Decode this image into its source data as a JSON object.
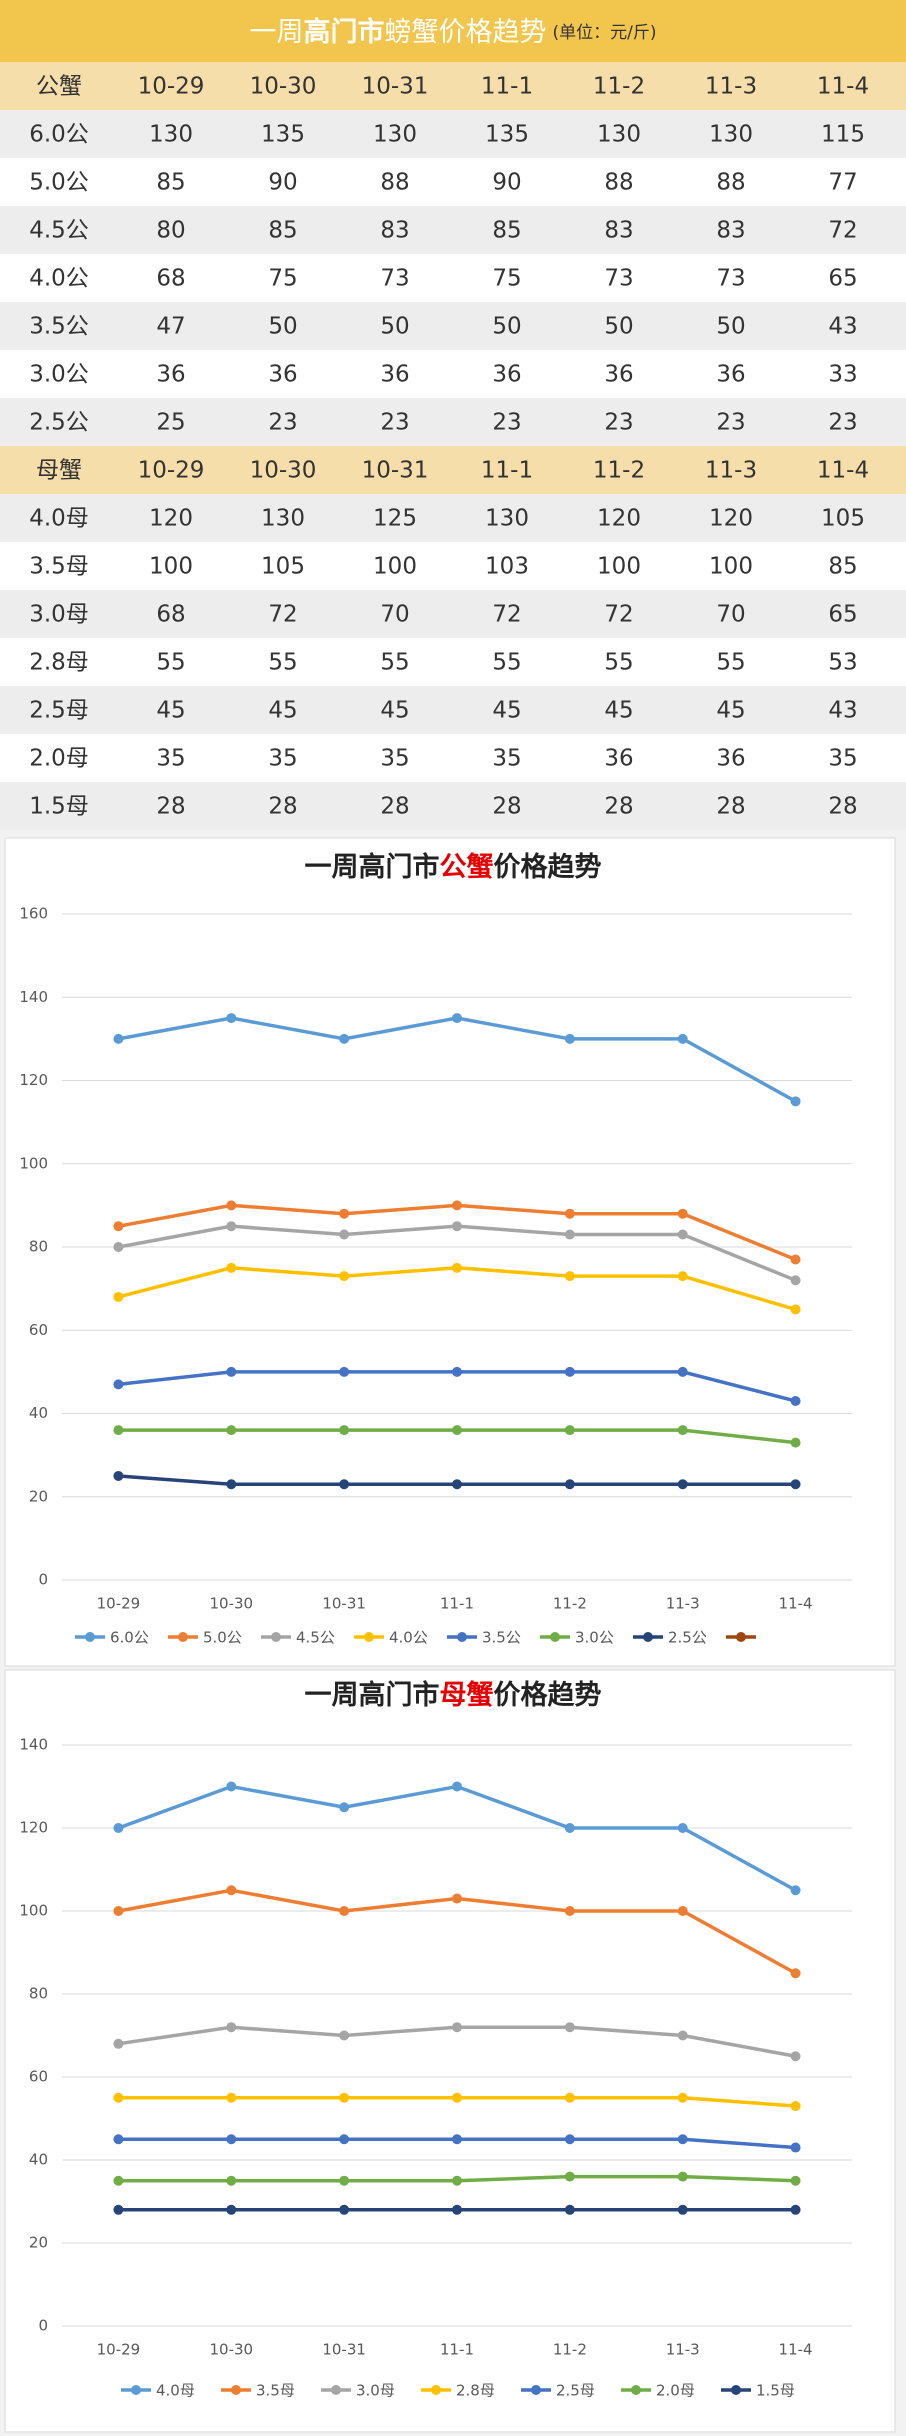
{
  "table": {
    "title": [
      "一周",
      "高门市",
      "螃蟹价格趋势"
    ],
    "unit": "(单位：元/斤)",
    "sections": [
      {
        "header": [
          "公蟹",
          "10-29",
          "10-30",
          "10-31",
          "11-1",
          "11-2",
          "11-3",
          "11-4"
        ],
        "rows": [
          [
            "6.0公",
            130,
            135,
            130,
            135,
            130,
            130,
            115
          ],
          [
            "5.0公",
            85,
            90,
            88,
            90,
            88,
            88,
            77
          ],
          [
            "4.5公",
            80,
            85,
            83,
            85,
            83,
            83,
            72
          ],
          [
            "4.0公",
            68,
            75,
            73,
            75,
            73,
            73,
            65
          ],
          [
            "3.5公",
            47,
            50,
            50,
            50,
            50,
            50,
            43
          ],
          [
            "3.0公",
            36,
            36,
            36,
            36,
            36,
            36,
            33
          ],
          [
            "2.5公",
            25,
            23,
            23,
            23,
            23,
            23,
            23
          ]
        ]
      },
      {
        "header": [
          "母蟹",
          "10-29",
          "10-30",
          "10-31",
          "11-1",
          "11-2",
          "11-3",
          "11-4"
        ],
        "rows": [
          [
            "4.0母",
            120,
            130,
            125,
            130,
            120,
            120,
            105
          ],
          [
            "3.5母",
            100,
            105,
            100,
            103,
            100,
            100,
            85
          ],
          [
            "3.0母",
            68,
            72,
            70,
            72,
            72,
            70,
            65
          ],
          [
            "2.8母",
            55,
            55,
            55,
            55,
            55,
            55,
            53
          ],
          [
            "2.5母",
            45,
            45,
            45,
            45,
            45,
            45,
            43
          ],
          [
            "2.0母",
            35,
            35,
            35,
            35,
            36,
            36,
            35
          ],
          [
            "1.5母",
            28,
            28,
            28,
            28,
            28,
            28,
            28
          ]
        ]
      }
    ]
  },
  "chart_data": [
    {
      "type": "line",
      "title": [
        "一周高门市",
        "公蟹",
        "价格趋势"
      ],
      "categories": [
        "10-29",
        "10-30",
        "10-31",
        "11-1",
        "11-2",
        "11-3",
        "11-4"
      ],
      "series": [
        {
          "name": "6.0公",
          "color": "#5b9bd5",
          "values": [
            130,
            135,
            130,
            135,
            130,
            130,
            115
          ]
        },
        {
          "name": "5.0公",
          "color": "#ed7d31",
          "values": [
            85,
            90,
            88,
            90,
            88,
            88,
            77
          ]
        },
        {
          "name": "4.5公",
          "color": "#a5a5a5",
          "values": [
            80,
            85,
            83,
            85,
            83,
            83,
            72
          ]
        },
        {
          "name": "4.0公",
          "color": "#ffc000",
          "values": [
            68,
            75,
            73,
            75,
            73,
            73,
            65
          ]
        },
        {
          "name": "3.5公",
          "color": "#4472c4",
          "values": [
            47,
            50,
            50,
            50,
            50,
            50,
            43
          ]
        },
        {
          "name": "3.0公",
          "color": "#70ad47",
          "values": [
            36,
            36,
            36,
            36,
            36,
            36,
            33
          ]
        },
        {
          "name": "2.5公",
          "color": "#264478",
          "values": [
            25,
            23,
            23,
            23,
            23,
            23,
            23
          ]
        },
        {
          "name": null,
          "color": "#9e480e",
          "values": [
            null,
            null,
            null,
            null,
            null,
            null,
            null
          ]
        }
      ],
      "ylim": [
        0,
        160
      ],
      "yticks": [
        0,
        20,
        40,
        60,
        80,
        100,
        120,
        140,
        160
      ],
      "grid": true,
      "legend": "bottom"
    },
    {
      "type": "line",
      "title": [
        "一周高门市",
        "母蟹",
        "价格趋势"
      ],
      "categories": [
        "10-29",
        "10-30",
        "10-31",
        "11-1",
        "11-2",
        "11-3",
        "11-4"
      ],
      "series": [
        {
          "name": "4.0母",
          "color": "#5b9bd5",
          "values": [
            120,
            130,
            125,
            130,
            120,
            120,
            105
          ]
        },
        {
          "name": "3.5母",
          "color": "#ed7d31",
          "values": [
            100,
            105,
            100,
            103,
            100,
            100,
            85
          ]
        },
        {
          "name": "3.0母",
          "color": "#a5a5a5",
          "values": [
            68,
            72,
            70,
            72,
            72,
            70,
            65
          ]
        },
        {
          "name": "2.8母",
          "color": "#ffc000",
          "values": [
            55,
            55,
            55,
            55,
            55,
            55,
            53
          ]
        },
        {
          "name": "2.5母",
          "color": "#4472c4",
          "values": [
            45,
            45,
            45,
            45,
            45,
            45,
            43
          ]
        },
        {
          "name": "2.0母",
          "color": "#70ad47",
          "values": [
            35,
            35,
            35,
            35,
            36,
            36,
            35
          ]
        },
        {
          "name": "1.5母",
          "color": "#264478",
          "values": [
            28,
            28,
            28,
            28,
            28,
            28,
            28
          ]
        }
      ],
      "ylim": [
        0,
        140
      ],
      "yticks": [
        0,
        20,
        40,
        60,
        80,
        100,
        120,
        140
      ],
      "grid": true,
      "legend": "bottom"
    }
  ]
}
